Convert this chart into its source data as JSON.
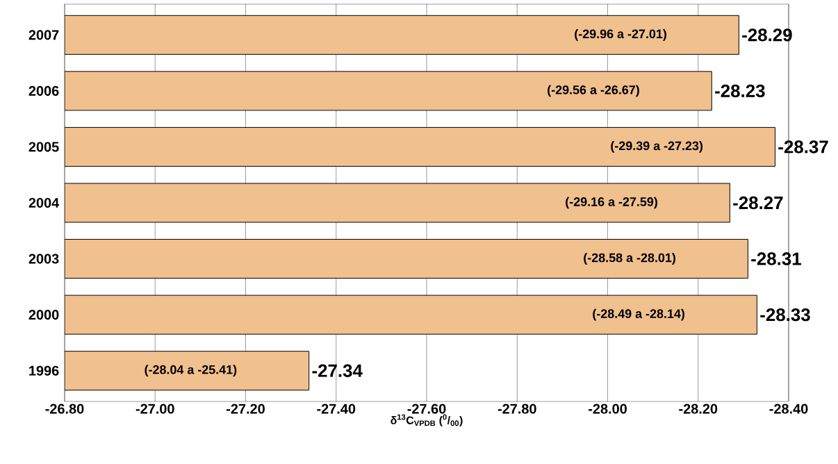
{
  "chart_data": {
    "type": "bar",
    "orientation": "horizontal",
    "xlabel": "δ$^{13}$C$_{VPDB}$ ($^{0}$/$_{00}$)",
    "categories": [
      "2007",
      "2006",
      "2005",
      "2004",
      "2003",
      "2000",
      "1996"
    ],
    "values": [
      -28.29,
      -28.23,
      -28.37,
      -28.27,
      -28.31,
      -28.33,
      -27.34
    ],
    "color": "#f0c08e",
    "data_labels": true,
    "grid": "x",
    "xlim": [
      -26.8,
      -28.4
    ],
    "xticks": [
      {
        "value": -26.8,
        "label": "-26.80"
      },
      {
        "value": -27.0,
        "label": "-27.00"
      },
      {
        "value": -27.2,
        "label": "-27.20"
      },
      {
        "value": -27.4,
        "label": "-27.40"
      },
      {
        "value": -27.6,
        "label": "-27.60"
      },
      {
        "value": -27.8,
        "label": "-27.80"
      },
      {
        "value": -28.0,
        "label": "-28.00"
      },
      {
        "value": -28.2,
        "label": "-28.20"
      },
      {
        "value": -28.4,
        "label": "-28.40"
      }
    ],
    "annotations": [
      "(-29.96 a -27.01)",
      "(-29.56 a -26.67)",
      "(-29.39 a -27.23)",
      "(-29.16 a -27.59)",
      "(-28.58 a -28.01)",
      "(-28.49 a -28.14)",
      "(-28.04 a -25.41)"
    ]
  }
}
